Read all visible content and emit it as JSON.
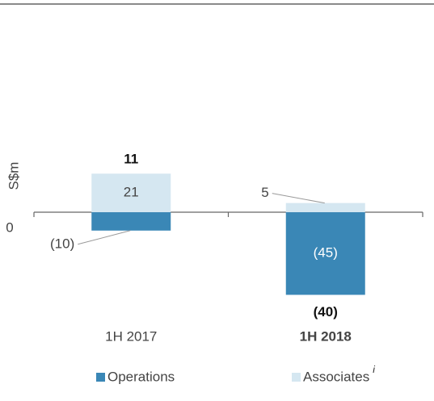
{
  "chart_data": {
    "type": "stacked_bar",
    "ylabel": "S$m",
    "categories": [
      "1H 2017",
      "1H 2018"
    ],
    "series": [
      {
        "name": "Operations",
        "color": "#3a87b6",
        "values": [
          -10,
          -45
        ],
        "value_labels": [
          "(10)",
          "(45)"
        ]
      },
      {
        "name": "Associates",
        "footnote": "i",
        "color": "#d5e7f1",
        "values": [
          21,
          5
        ],
        "value_labels": [
          "21",
          "5"
        ]
      }
    ],
    "totals": {
      "values": [
        11,
        -40
      ],
      "value_labels": [
        "11",
        "(40)"
      ]
    },
    "ylim": [
      -58,
      109
    ],
    "yticks": [
      0
    ]
  }
}
